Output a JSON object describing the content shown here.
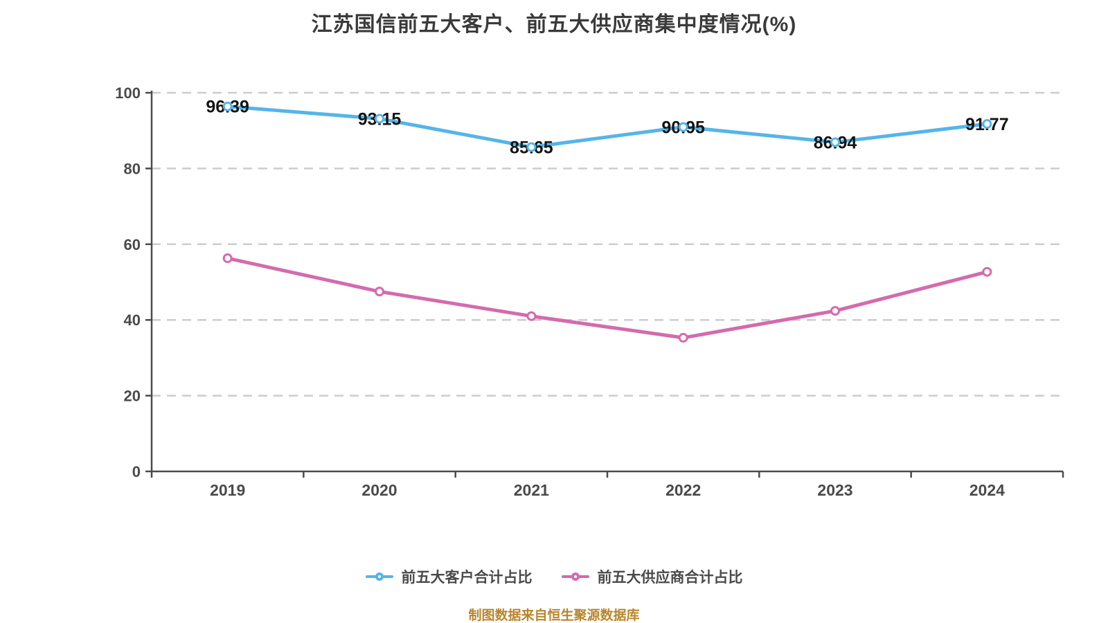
{
  "title": "江苏国信前五大客户、前五大供应商集中度情况(%)",
  "source_note": "制图数据来自恒生聚源数据库",
  "chart_data": {
    "type": "line",
    "categories": [
      "2019",
      "2020",
      "2021",
      "2022",
      "2023",
      "2024"
    ],
    "series": [
      {
        "name": "前五大客户合计占比",
        "color": "#55b5e9",
        "values": [
          96.39,
          93.15,
          85.65,
          90.95,
          86.94,
          91.77
        ],
        "show_labels": true
      },
      {
        "name": "前五大供应商合计占比",
        "color": "#d36bad",
        "values": [
          56.3,
          47.5,
          41.0,
          35.3,
          42.4,
          52.7
        ],
        "show_labels": false
      }
    ],
    "xlabel": "",
    "ylabel": "",
    "ylim": [
      0,
      100
    ],
    "yticks": [
      0,
      20,
      40,
      60,
      80,
      100
    ],
    "grid": "horizontal-dashed",
    "legend_position": "bottom",
    "marker": "circle-white-fill"
  },
  "colors": {
    "background": "#ffffff",
    "title_text": "#3a3a3a",
    "axis": "#4a4a4a",
    "tick_label": "#4a4a4a",
    "gridline": "#cccccc",
    "value_label": "#141414",
    "legend_text": "#4a4a4a",
    "source_note_text": "#b8862b"
  }
}
